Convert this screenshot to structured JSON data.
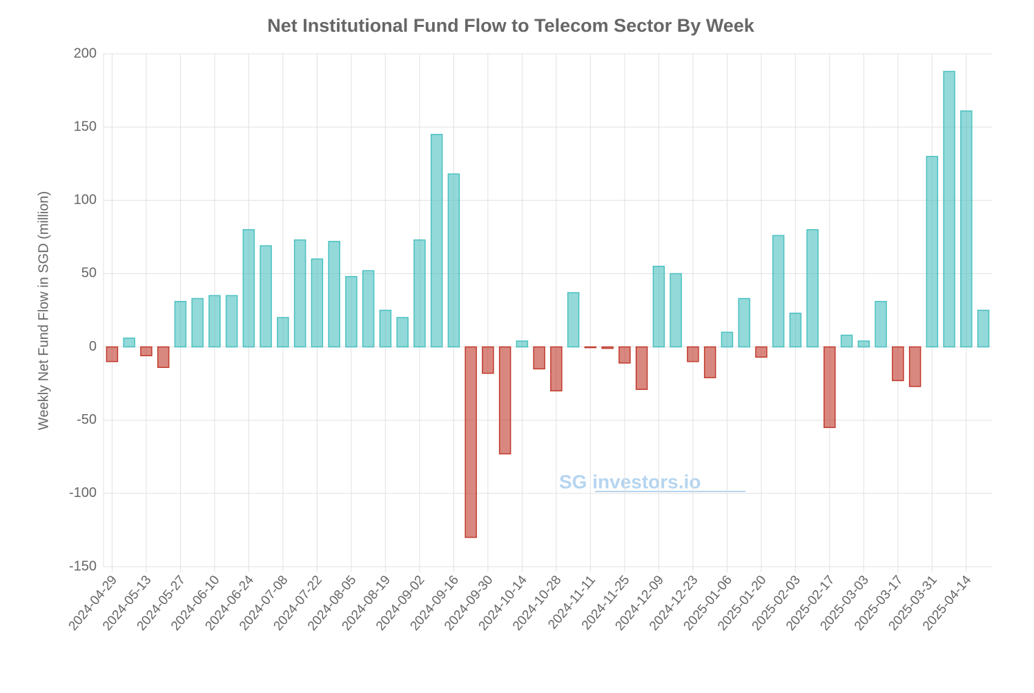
{
  "chart_data": {
    "type": "bar",
    "title": "Net Institutional Fund Flow to Telecom Sector By Week",
    "y_label": "Weekly Net Fund Flow in SGD (million)",
    "watermark": "SG investors.io",
    "categories": [
      "2024-04-29",
      null,
      "2024-05-13",
      null,
      "2024-05-27",
      null,
      "2024-06-10",
      null,
      "2024-06-24",
      null,
      "2024-07-08",
      null,
      "2024-07-22",
      null,
      "2024-08-05",
      null,
      "2024-08-19",
      null,
      "2024-09-02",
      null,
      "2024-09-16",
      null,
      "2024-09-30",
      null,
      "2024-10-14",
      null,
      "2024-10-28",
      null,
      "2024-11-11",
      null,
      "2024-11-25",
      null,
      "2024-12-09",
      null,
      "2024-12-23",
      null,
      "2025-01-06",
      null,
      "2025-01-20",
      null,
      "2025-02-03",
      null,
      "2025-02-17",
      null,
      "2025-03-03",
      null,
      "2025-03-17",
      null,
      "2025-03-31",
      null,
      "2025-04-14",
      null
    ],
    "values": [
      -10,
      6,
      -6,
      -14,
      31,
      33,
      35,
      35,
      80,
      69,
      20,
      73,
      60,
      72,
      48,
      52,
      25,
      20,
      73,
      145,
      118,
      -130,
      -18,
      -73,
      4,
      -15,
      -30,
      37,
      -0.5,
      -1,
      -11,
      -29,
      55,
      50,
      -10,
      -21,
      10,
      33,
      -7,
      76,
      23,
      80,
      -55,
      8,
      4,
      31,
      -23,
      -27,
      130,
      188,
      161,
      25
    ],
    "positive_color": "#4bc0c0",
    "negative_color": "#c0392b",
    "ylim": [
      -150,
      200
    ],
    "yticks": [
      -150,
      -100,
      -50,
      0,
      50,
      100,
      150,
      200
    ],
    "grid": true
  }
}
